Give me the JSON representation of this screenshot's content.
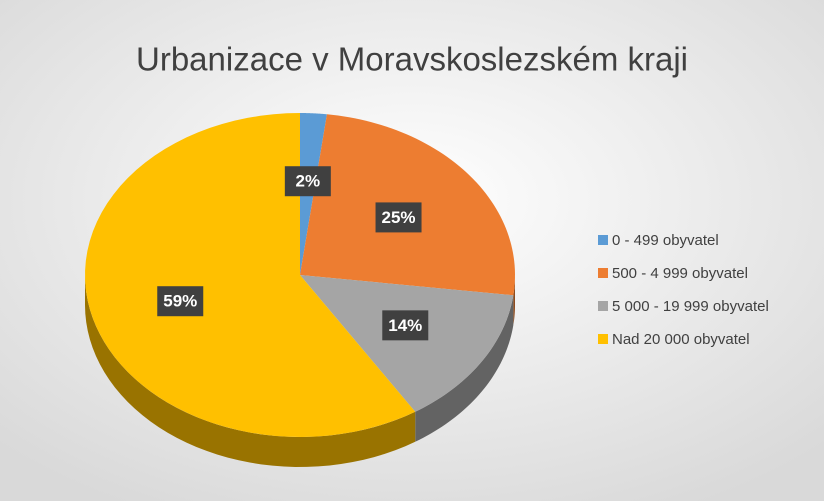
{
  "chart_data": {
    "type": "pie3d",
    "title": "Urbanizace v Moravskoslezském kraji",
    "categories": [
      "0 - 499 obyvatel",
      "500 - 4 999 obyvatel",
      "5 000 - 19 999 obyvatel",
      "Nad 20 000 obyvatel"
    ],
    "values": [
      2,
      25,
      14,
      59
    ],
    "value_labels": [
      "2%",
      "25%",
      "14%",
      "59%"
    ],
    "colors": [
      "#5b9bd5",
      "#ed7d31",
      "#a5a5a5",
      "#ffc000"
    ],
    "legend": "right"
  }
}
